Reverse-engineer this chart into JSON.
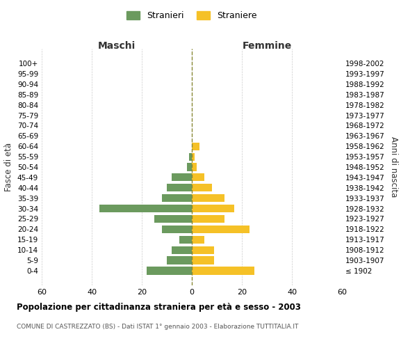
{
  "age_groups": [
    "100+",
    "95-99",
    "90-94",
    "85-89",
    "80-84",
    "75-79",
    "70-74",
    "65-69",
    "60-64",
    "55-59",
    "50-54",
    "45-49",
    "40-44",
    "35-39",
    "30-34",
    "25-29",
    "20-24",
    "15-19",
    "10-14",
    "5-9",
    "0-4"
  ],
  "birth_years": [
    "≤ 1902",
    "1903-1907",
    "1908-1912",
    "1913-1917",
    "1918-1922",
    "1923-1927",
    "1928-1932",
    "1933-1937",
    "1938-1942",
    "1943-1947",
    "1948-1952",
    "1953-1957",
    "1958-1962",
    "1963-1967",
    "1968-1972",
    "1973-1977",
    "1978-1982",
    "1983-1987",
    "1988-1992",
    "1993-1997",
    "1998-2002"
  ],
  "maschi": [
    0,
    0,
    0,
    0,
    0,
    0,
    0,
    0,
    0,
    1,
    2,
    8,
    10,
    12,
    37,
    15,
    12,
    5,
    8,
    10,
    18
  ],
  "femmine": [
    0,
    0,
    0,
    0,
    0,
    0,
    0,
    0,
    3,
    1,
    2,
    5,
    8,
    13,
    17,
    13,
    23,
    5,
    9,
    9,
    25
  ],
  "maschi_color": "#6b9a5e",
  "femmine_color": "#f5c127",
  "title": "Popolazione per cittadinanza straniera per età e sesso - 2003",
  "subtitle": "COMUNE DI CASTREZZATO (BS) - Dati ISTAT 1° gennaio 2003 - Elaborazione TUTTITALIA.IT",
  "xlabel_left": "Maschi",
  "xlabel_right": "Femmine",
  "ylabel_left": "Fasce di età",
  "ylabel_right": "Anni di nascita",
  "legend_maschi": "Stranieri",
  "legend_femmine": "Straniere",
  "xlim": 60,
  "background_color": "#ffffff",
  "grid_color": "#cccccc"
}
